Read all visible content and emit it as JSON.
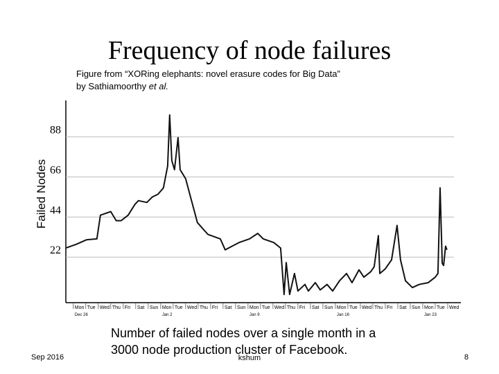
{
  "slide": {
    "title": "Frequency of node failures",
    "source_line1": "Figure from “XORing elephants: novel erasure codes for Big Data”",
    "source_line2": "by Sathiamoorthy ",
    "source_etal": "et al.",
    "caption_line1": "Number of failed nodes over a single month in a",
    "caption_line2": "3000 node production cluster of Facebook.",
    "footer_date": "Sep 2016",
    "footer_author": "kshum",
    "footer_page": "8"
  },
  "chart_data": {
    "type": "line",
    "y_label": "Failed Nodes",
    "x": [
      -0.6,
      0.22,
      1.06,
      1.89,
      2.17,
      3.0,
      3.44,
      3.83,
      4.39,
      4.94,
      5.22,
      5.89,
      6.33,
      6.78,
      7.22,
      7.56,
      7.72,
      7.89,
      8.11,
      8.39,
      8.56,
      9.0,
      9.39,
      9.94,
      10.78,
      11.78,
      12.17,
      12.72,
      13.28,
      14.11,
      14.78,
      15.22,
      16.06,
      16.61,
      16.89,
      17.06,
      17.33,
      17.72,
      18.0,
      18.56,
      18.83,
      19.39,
      19.78,
      20.33,
      20.78,
      21.33,
      21.89,
      22.33,
      22.89,
      23.28,
      23.83,
      24.11,
      24.44,
      24.56,
      25.0,
      25.5,
      25.94,
      26.22,
      26.61,
      27.17,
      27.72,
      28.44,
      29.0,
      29.22,
      29.39,
      29.56,
      29.67,
      29.83,
      29.94
    ],
    "series": [
      {
        "name": "Failed nodes",
        "color": "#111111",
        "values": [
          27,
          29,
          31.5,
          32,
          45,
          47,
          42,
          42,
          45,
          51,
          53,
          52,
          55,
          56.5,
          60,
          72,
          100,
          75,
          70,
          87.6,
          70,
          65,
          55,
          41,
          34.5,
          32,
          26,
          28,
          30,
          32,
          35,
          32,
          30,
          27,
          1.5,
          19,
          1.5,
          13,
          3.4,
          7,
          3.4,
          8,
          4,
          7,
          3.4,
          9,
          13,
          8,
          15,
          11,
          14,
          16.7,
          33.8,
          13,
          15.6,
          20.5,
          39.4,
          20.5,
          9,
          5.3,
          7,
          8,
          11,
          13,
          60,
          18.6,
          17.4,
          28,
          26
        ]
      }
    ],
    "xlim": [
      -0.6,
      31
    ],
    "xticks": [
      {
        "value": 0,
        "label": "Mon"
      },
      {
        "value": 1,
        "label": "Tue"
      },
      {
        "value": 2,
        "label": "Wed"
      },
      {
        "value": 3,
        "label": "Thu"
      },
      {
        "value": 4,
        "label": "Fri"
      },
      {
        "value": 5,
        "label": "Sat"
      },
      {
        "value": 6,
        "label": "Sun"
      },
      {
        "value": 7,
        "label": "Mon"
      },
      {
        "value": 8,
        "label": "Tue"
      },
      {
        "value": 9,
        "label": "Wed"
      },
      {
        "value": 10,
        "label": "Thu"
      },
      {
        "value": 11,
        "label": "Fri"
      },
      {
        "value": 12,
        "label": "Sat"
      },
      {
        "value": 13,
        "label": "Sun"
      },
      {
        "value": 14,
        "label": "Mon"
      },
      {
        "value": 15,
        "label": "Tue"
      },
      {
        "value": 16,
        "label": "Wed"
      },
      {
        "value": 17,
        "label": "Thu"
      },
      {
        "value": 18,
        "label": "Fri"
      },
      {
        "value": 19,
        "label": "Sat"
      },
      {
        "value": 20,
        "label": "Sun"
      },
      {
        "value": 21,
        "label": "Mon"
      },
      {
        "value": 22,
        "label": "Tue"
      },
      {
        "value": 23,
        "label": "Wed"
      },
      {
        "value": 24,
        "label": "Thu"
      },
      {
        "value": 25,
        "label": "Fri"
      },
      {
        "value": 26,
        "label": "Sat"
      },
      {
        "value": 27,
        "label": "Sun"
      },
      {
        "value": 28,
        "label": "Mon"
      },
      {
        "value": 29,
        "label": "Tue"
      },
      {
        "value": 30,
        "label": "Wed"
      }
    ],
    "xticks_dates": [
      {
        "value": 0,
        "label": "Dec 26"
      },
      {
        "value": 7,
        "label": "Jan 2"
      },
      {
        "value": 14,
        "label": "Jan 9"
      },
      {
        "value": 21,
        "label": "Jan 16"
      },
      {
        "value": 28,
        "label": "Jan 23"
      }
    ],
    "ylim": [
      -3,
      108
    ],
    "yticks": [
      22,
      44,
      66,
      88
    ],
    "grid": true
  }
}
